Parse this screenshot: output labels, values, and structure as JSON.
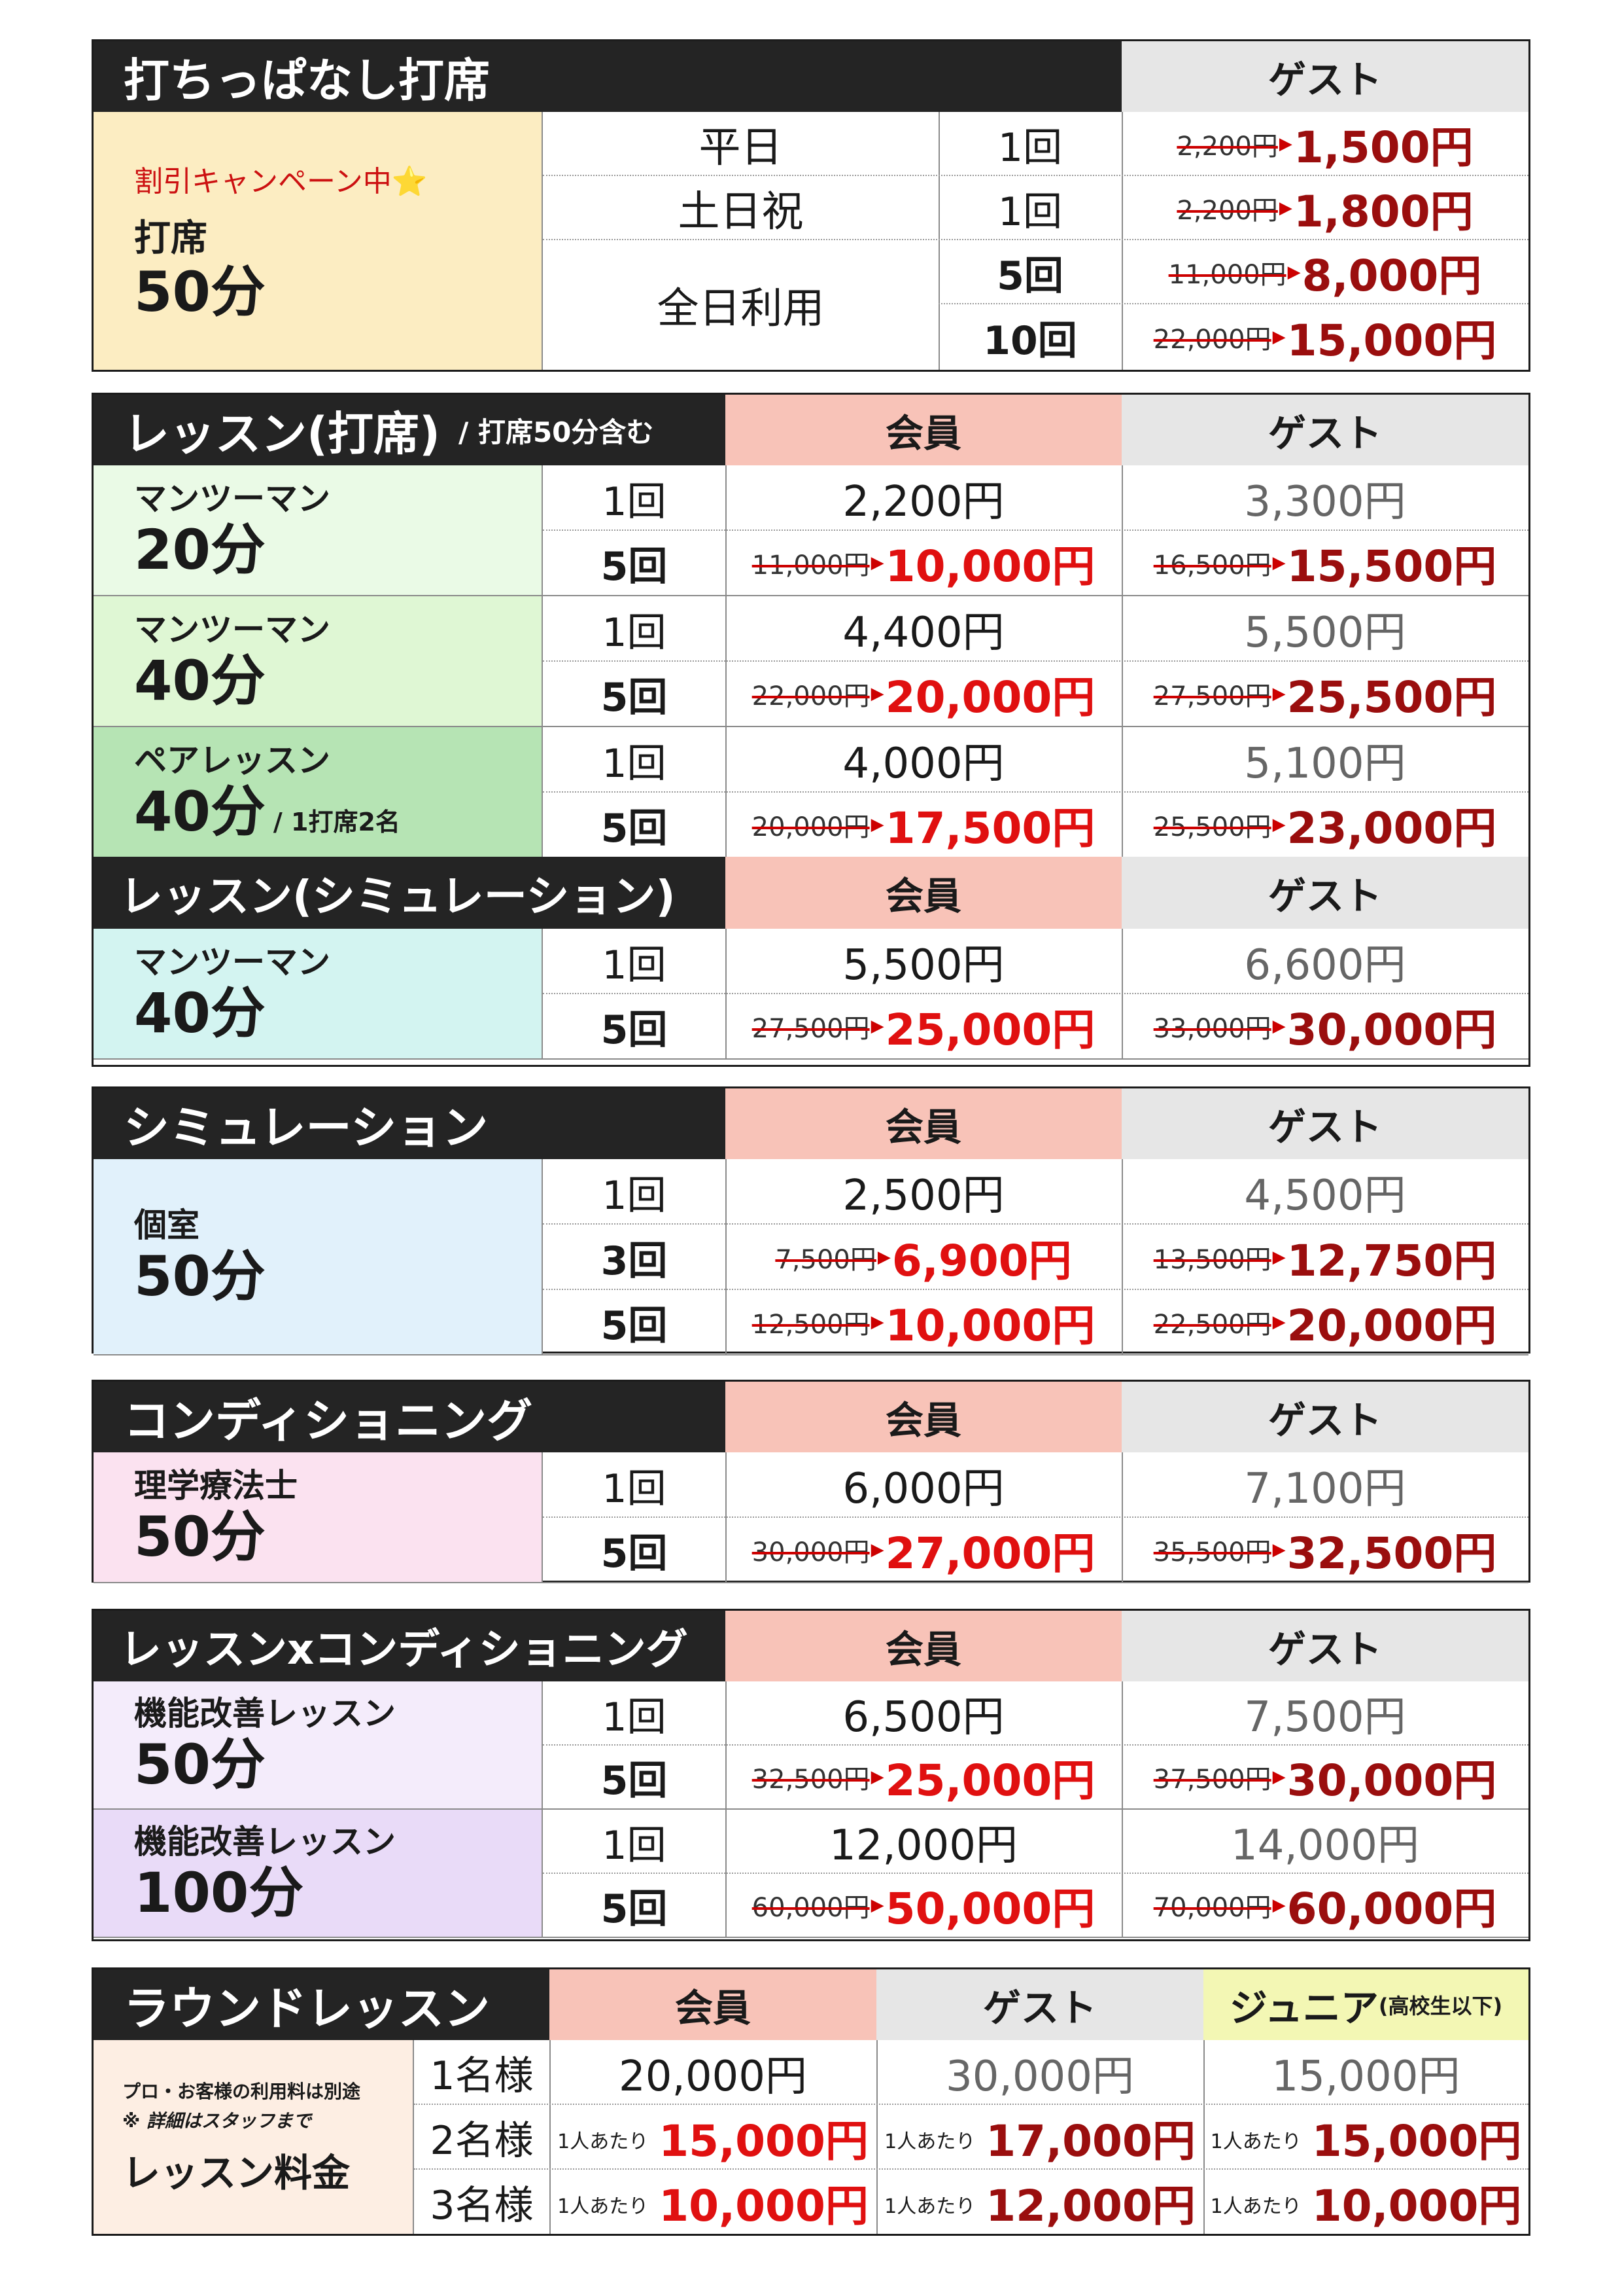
{
  "labels": {
    "guest": "ゲスト",
    "member": "会員",
    "junior": "ジュニア",
    "junior_note": "(高校生以下)",
    "yen": "円",
    "arrow": "▶",
    "per_person": "1人あたり"
  },
  "driving": {
    "title": "打ちっぱなし打席",
    "campaign": "割引キャンペーン中",
    "star": "⭐",
    "item": "打席",
    "duration": "50分",
    "rows": [
      {
        "day": "平日",
        "count": "1回",
        "old": "2,200円",
        "new": "1,500円"
      },
      {
        "day": "土日祝",
        "count": "1回",
        "old": "2,200円",
        "new": "1,800円"
      },
      {
        "day": "全日利用",
        "count": "5回",
        "old": "11,000円",
        "new": "8,000円"
      },
      {
        "day": "",
        "count": "10回",
        "old": "22,000円",
        "new": "15,000円"
      }
    ]
  },
  "lesson": {
    "title": "レッスン(打席)",
    "sub": "/ 打席50分含む",
    "groups": [
      {
        "name": "マンツーマン",
        "duration": "20分",
        "note": "",
        "rows": [
          {
            "count": "1回",
            "member": "2,200円",
            "guest": "3,300円"
          },
          {
            "count": "5回",
            "member_old": "11,000円",
            "member_new": "10,000円",
            "guest_old": "16,500円",
            "guest_new": "15,500円"
          }
        ]
      },
      {
        "name": "マンツーマン",
        "duration": "40分",
        "note": "",
        "rows": [
          {
            "count": "1回",
            "member": "4,400円",
            "guest": "5,500円"
          },
          {
            "count": "5回",
            "member_old": "22,000円",
            "member_new": "20,000円",
            "guest_old": "27,500円",
            "guest_new": "25,500円"
          }
        ]
      },
      {
        "name": "ペアレッスン",
        "duration": "40分",
        "note": "/ 1打席2名",
        "rows": [
          {
            "count": "1回",
            "member": "4,000円",
            "guest": "5,100円"
          },
          {
            "count": "5回",
            "member_old": "20,000円",
            "member_new": "17,500円",
            "guest_old": "25,500円",
            "guest_new": "23,000円"
          }
        ]
      }
    ]
  },
  "lesson_sim": {
    "title": "レッスン(シミュレーション)",
    "groups": [
      {
        "name": "マンツーマン",
        "duration": "40分",
        "rows": [
          {
            "count": "1回",
            "member": "5,500円",
            "guest": "6,600円"
          },
          {
            "count": "5回",
            "member_old": "27,500円",
            "member_new": "25,000円",
            "guest_old": "33,000円",
            "guest_new": "30,000円"
          }
        ]
      }
    ]
  },
  "simulation": {
    "title": "シミュレーション",
    "name": "個室",
    "duration": "50分",
    "rows": [
      {
        "count": "1回",
        "member": "2,500円",
        "guest": "4,500円"
      },
      {
        "count": "3回",
        "member_old": "7,500円",
        "member_new": "6,900円",
        "guest_old": "13,500円",
        "guest_new": "12,750円"
      },
      {
        "count": "5回",
        "member_old": "12,500円",
        "member_new": "10,000円",
        "guest_old": "22,500円",
        "guest_new": "20,000円"
      }
    ]
  },
  "conditioning": {
    "title": "コンディショニング",
    "name": "理学療法士",
    "duration": "50分",
    "rows": [
      {
        "count": "1回",
        "member": "6,000円",
        "guest": "7,100円"
      },
      {
        "count": "5回",
        "member_old": "30,000円",
        "member_new": "27,000円",
        "guest_old": "35,500円",
        "guest_new": "32,500円"
      }
    ]
  },
  "lesson_cond": {
    "title": "レッスンxコンディショニング",
    "groups": [
      {
        "name": "機能改善レッスン",
        "duration": "50分",
        "rows": [
          {
            "count": "1回",
            "member": "6,500円",
            "guest": "7,500円"
          },
          {
            "count": "5回",
            "member_old": "32,500円",
            "member_new": "25,000円",
            "guest_old": "37,500円",
            "guest_new": "30,000円"
          }
        ]
      },
      {
        "name": "機能改善レッスン",
        "duration": "100分",
        "rows": [
          {
            "count": "1回",
            "member": "12,000円",
            "guest": "14,000円"
          },
          {
            "count": "5回",
            "member_old": "60,000円",
            "member_new": "50,000円",
            "guest_old": "70,000円",
            "guest_new": "60,000円"
          }
        ]
      }
    ]
  },
  "round": {
    "title": "ラウンドレッスン",
    "note1": "プロ・お客様の利用料は別途",
    "note2": "※ 詳細はスタッフまで",
    "label": "レッスン料金",
    "rows": [
      {
        "people": "1名様",
        "member": "20,000円",
        "guest": "30,000円",
        "junior": "15,000円"
      },
      {
        "people": "2名様",
        "member": "15,000円",
        "guest": "17,000円",
        "junior": "15,000円"
      },
      {
        "people": "3名様",
        "member": "10,000円",
        "guest": "12,000円",
        "junior": "10,000円"
      }
    ]
  },
  "colors": {
    "header_bg": "#242424",
    "member_bg": "#f8c3b8",
    "guest_bg": "#e6e6e6",
    "junior_bg": "#f3f7b4",
    "price_red": "#e01010",
    "price_darkred": "#9a0e0e"
  }
}
